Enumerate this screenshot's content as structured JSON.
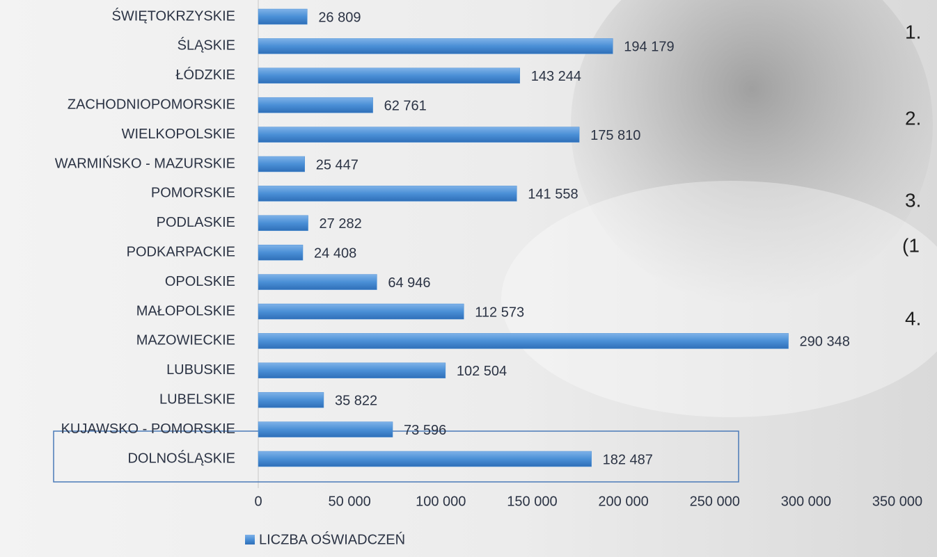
{
  "chart_data": {
    "type": "bar",
    "orientation": "horizontal",
    "categories": [
      "ŚWIĘTOKRZYSKIE",
      "ŚLĄSKIE",
      "ŁÓDZKIE",
      "ZACHODNIOPOMORSKIE",
      "WIELKOPOLSKIE",
      "WARMIŃSKO - MAZURSKIE",
      "POMORSKIE",
      "PODLASKIE",
      "PODKARPACKIE",
      "OPOLSKIE",
      "MAŁOPOLSKIE",
      "MAZOWIECKIE",
      "LUBUSKIE",
      "LUBELSKIE",
      "KUJAWSKO - POMORSKIE",
      "DOLNOŚLĄSKIE"
    ],
    "series": [
      {
        "name": "LICZBA OŚWIADCZEŃ",
        "color": "#4a8fd6",
        "values": [
          26809,
          194179,
          143244,
          62761,
          175810,
          25447,
          141558,
          27282,
          24408,
          64946,
          112573,
          290348,
          102504,
          35822,
          73596,
          182487
        ],
        "value_labels": [
          "26 809",
          "194 179",
          "143 244",
          "62 761",
          "175 810",
          "25 447",
          "141 558",
          "27 282",
          "24 408",
          "64 946",
          "112 573",
          "290 348",
          "102 504",
          "35 822",
          "73 596",
          "182 487"
        ]
      }
    ],
    "xlim": [
      0,
      350000
    ],
    "xticks": [
      0,
      {
        "value": 50000,
        "label": "50 000"
      },
      {
        "value": 100000,
        "label": "100 000"
      },
      {
        "value": 150000,
        "label": "150 000"
      },
      {
        "value": 200000,
        "label": "200 000"
      },
      {
        "value": 250000,
        "label": "250 000"
      },
      {
        "value": 300000,
        "label": "300 000"
      },
      {
        "value": 350000,
        "label": "350 000"
      }
    ],
    "legend": "bottom"
  },
  "slide_text": [
    "1.",
    "2.",
    "3.",
    "(1",
    "4."
  ]
}
